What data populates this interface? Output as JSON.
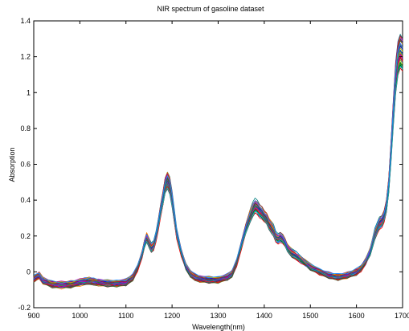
{
  "chart_data": {
    "type": "line",
    "title": "NIR spectrum of gasoline dataset",
    "xlabel": "Wavelength(nm)",
    "ylabel": "Absorption",
    "xlim": [
      900,
      1700
    ],
    "ylim": [
      -0.2,
      1.4
    ],
    "xticks": [
      900,
      1000,
      1100,
      1200,
      1300,
      1400,
      1500,
      1600,
      1700
    ],
    "xtick_labels": [
      "900",
      "1000",
      "1100",
      "1200",
      "1300",
      "1400",
      "1500",
      "1600",
      "1700"
    ],
    "yticks": [
      -0.2,
      0,
      0.2,
      0.4,
      0.6,
      0.8,
      1,
      1.2,
      1.4
    ],
    "ytick_labels": [
      "-0.2",
      "0",
      "0.2",
      "0.4",
      "0.6",
      "0.8",
      "1",
      "1.2",
      "1.4"
    ],
    "grid": false,
    "legend": false,
    "colors": [
      "#0000ff",
      "#008000",
      "#ff0000",
      "#00bfbf",
      "#bf00bf",
      "#bfbf00",
      "#404040",
      "#ff7f00",
      "#7f00ff",
      "#007f7f",
      "#a52a2a",
      "#1e90ff",
      "#2e8b57",
      "#dc143c",
      "#556b2f",
      "#8b008b"
    ],
    "reference_spectrum": {
      "x": [
        900,
        905,
        912,
        920,
        940,
        960,
        980,
        1000,
        1010,
        1020,
        1030,
        1040,
        1060,
        1080,
        1100,
        1115,
        1125,
        1135,
        1140,
        1145,
        1150,
        1155,
        1160,
        1165,
        1170,
        1175,
        1180,
        1185,
        1190,
        1195,
        1200,
        1205,
        1210,
        1220,
        1230,
        1240,
        1250,
        1260,
        1280,
        1300,
        1320,
        1330,
        1340,
        1350,
        1360,
        1370,
        1375,
        1380,
        1385,
        1390,
        1395,
        1400,
        1405,
        1410,
        1415,
        1420,
        1425,
        1430,
        1435,
        1440,
        1445,
        1450,
        1460,
        1470,
        1480,
        1490,
        1500,
        1520,
        1540,
        1560,
        1580,
        1600,
        1610,
        1620,
        1630,
        1640,
        1650,
        1655,
        1660,
        1665,
        1670,
        1675,
        1680,
        1685,
        1690,
        1695,
        1700
      ],
      "y": [
        -0.04,
        -0.03,
        -0.02,
        -0.05,
        -0.07,
        -0.075,
        -0.07,
        -0.06,
        -0.055,
        -0.05,
        -0.055,
        -0.06,
        -0.065,
        -0.065,
        -0.06,
        -0.03,
        0.02,
        0.1,
        0.16,
        0.2,
        0.17,
        0.14,
        0.15,
        0.2,
        0.27,
        0.35,
        0.42,
        0.5,
        0.53,
        0.5,
        0.42,
        0.32,
        0.22,
        0.11,
        0.03,
        -0.01,
        -0.03,
        -0.04,
        -0.045,
        -0.045,
        -0.03,
        -0.01,
        0.05,
        0.15,
        0.25,
        0.33,
        0.36,
        0.38,
        0.37,
        0.35,
        0.34,
        0.32,
        0.31,
        0.28,
        0.26,
        0.24,
        0.2,
        0.19,
        0.2,
        0.19,
        0.17,
        0.14,
        0.11,
        0.09,
        0.07,
        0.05,
        0.03,
        0.0,
        -0.02,
        -0.03,
        -0.02,
        0.0,
        0.02,
        0.06,
        0.12,
        0.22,
        0.28,
        0.29,
        0.32,
        0.38,
        0.5,
        0.7,
        0.92,
        1.12,
        1.23,
        1.27,
        1.25
      ]
    },
    "sample_count": 60,
    "sample_variation": {
      "offset_range": [
        -0.015,
        0.015
      ],
      "scale_range": [
        0.9,
        1.04
      ]
    }
  }
}
